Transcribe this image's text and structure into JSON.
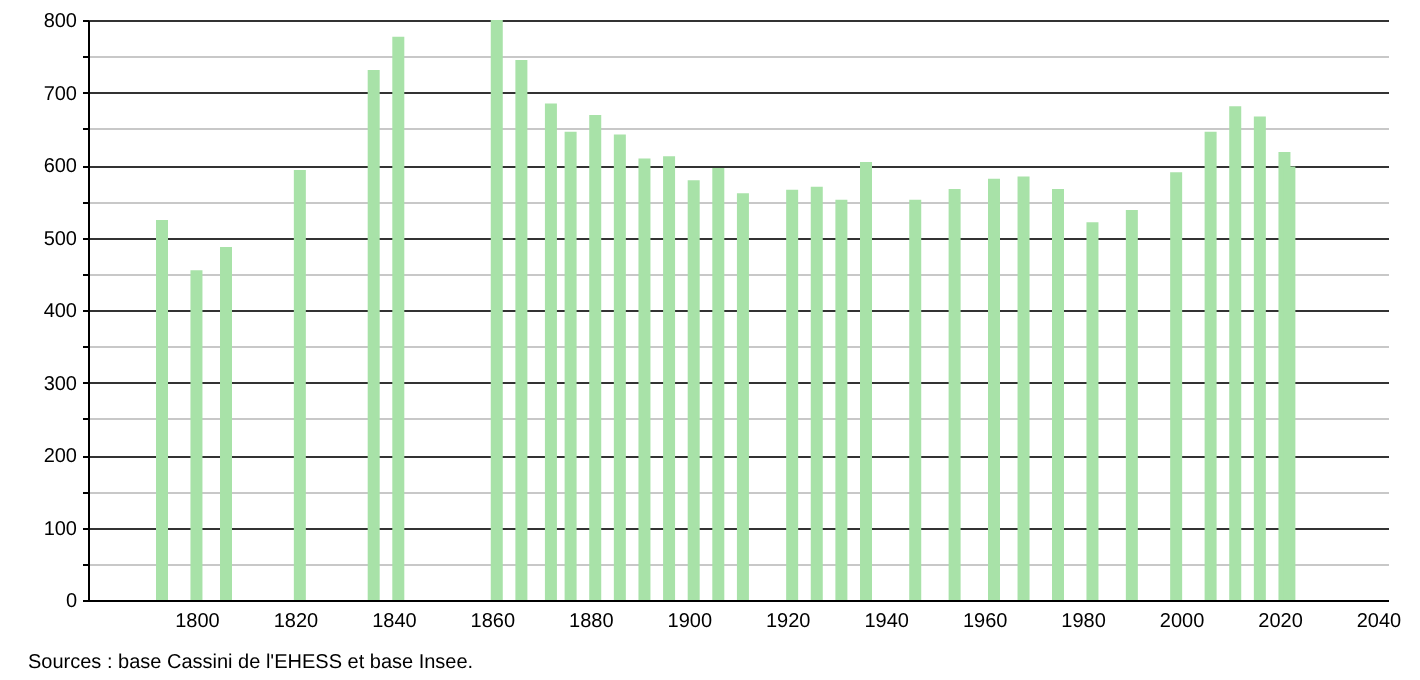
{
  "chart_data": {
    "type": "bar",
    "x": [
      1793,
      1800,
      1806,
      1821,
      1836,
      1841,
      1861,
      1866,
      1872,
      1876,
      1881,
      1886,
      1891,
      1896,
      1901,
      1906,
      1911,
      1921,
      1926,
      1931,
      1936,
      1946,
      1954,
      1962,
      1968,
      1975,
      1982,
      1990,
      1999,
      2006,
      2011,
      2016,
      2021,
      2022
    ],
    "values": [
      524,
      455,
      487,
      593,
      731,
      777,
      800,
      745,
      685,
      646,
      669,
      642,
      609,
      612,
      579,
      596,
      561,
      566,
      570,
      552,
      604,
      552,
      567,
      581,
      584,
      567,
      521,
      538,
      590,
      646,
      681,
      667,
      618,
      598
    ],
    "color": "#a8e2a8",
    "xlim": [
      1780,
      2040
    ],
    "xticks": [
      1800,
      1820,
      1840,
      1860,
      1880,
      1900,
      1920,
      1940,
      1960,
      1980,
      2000,
      2020,
      2040
    ],
    "ylim": [
      0,
      800
    ],
    "yticks": [
      0,
      {
        "value": 50,
        "label": null
      },
      100,
      {
        "value": 150,
        "label": null
      },
      200,
      {
        "value": 250,
        "label": null
      },
      300,
      {
        "value": 350,
        "label": null
      },
      400,
      {
        "value": 450,
        "label": null
      },
      500,
      {
        "value": 550,
        "label": null
      },
      600,
      {
        "value": 650,
        "label": null
      },
      700,
      {
        "value": 750,
        "label": null
      },
      800
    ],
    "grid": true,
    "annotations": [
      "Sources : base Cassini de l'EHESS et base Insee."
    ]
  }
}
